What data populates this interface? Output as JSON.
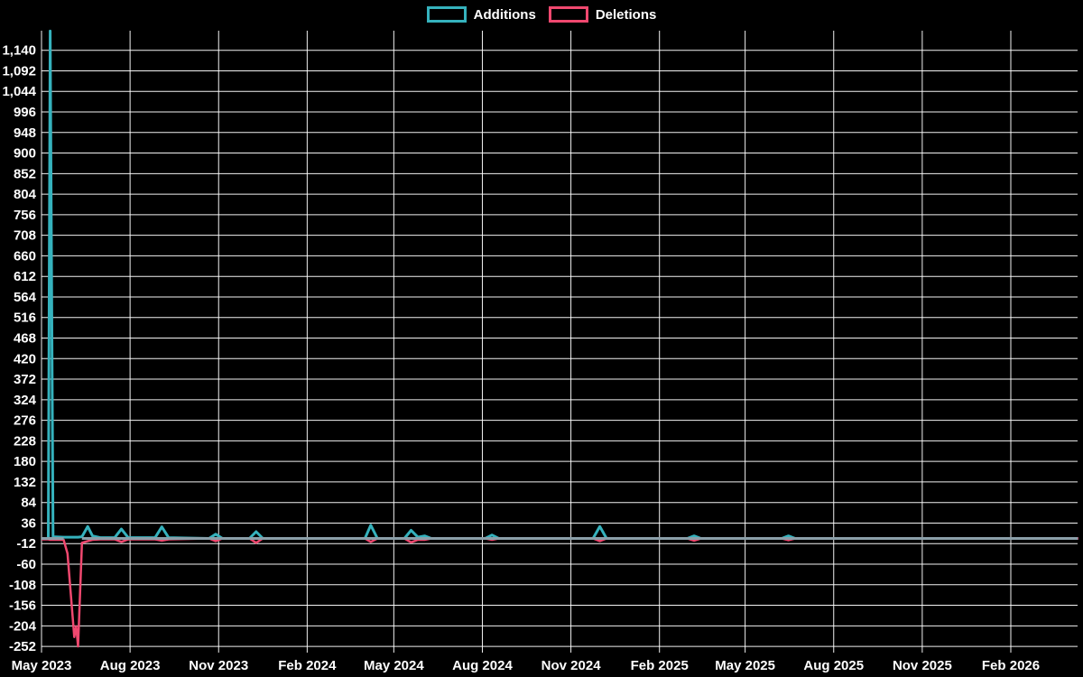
{
  "colors": {
    "background": "#000000",
    "grid": "#ffffff",
    "additions": "#35b2bd",
    "deletions": "#f0486f",
    "baseline": "#8b9fa9",
    "text": "#ffffff"
  },
  "chart_data": {
    "type": "line",
    "title": "",
    "xlabel": "",
    "ylabel": "",
    "legend_position": "top-center",
    "grid": true,
    "y_axis": {
      "tick_values": [
        1140,
        1092,
        1044,
        996,
        948,
        900,
        852,
        804,
        756,
        708,
        660,
        612,
        564,
        516,
        468,
        420,
        372,
        324,
        276,
        228,
        180,
        132,
        84,
        36,
        -12,
        -60,
        -108,
        -156,
        -204,
        -252
      ],
      "tick_labels": [
        "1,140",
        "1,092",
        "1,044",
        "996",
        "948",
        "900",
        "852",
        "804",
        "756",
        "708",
        "660",
        "612",
        "564",
        "516",
        "468",
        "420",
        "372",
        "324",
        "276",
        "228",
        "180",
        "132",
        "84",
        "36",
        "-12",
        "-60",
        "-108",
        "-156",
        "-204",
        "-252"
      ],
      "max_data_value": 1185,
      "min_data_value": -252
    },
    "x_ticks": [
      {
        "label": "May 2023",
        "date": "2023-05-01"
      },
      {
        "label": "Aug 2023",
        "date": "2023-08-01"
      },
      {
        "label": "Nov 2023",
        "date": "2023-11-01"
      },
      {
        "label": "Feb 2024",
        "date": "2024-02-01"
      },
      {
        "label": "May 2024",
        "date": "2024-05-01"
      },
      {
        "label": "Aug 2024",
        "date": "2024-08-01"
      },
      {
        "label": "Nov 2024",
        "date": "2024-11-01"
      },
      {
        "label": "Feb 2025",
        "date": "2025-02-01"
      },
      {
        "label": "May 2025",
        "date": "2025-05-01"
      },
      {
        "label": "Aug 2025",
        "date": "2025-08-01"
      },
      {
        "label": "Nov 2025",
        "date": "2025-11-01"
      },
      {
        "label": "Feb 2026",
        "date": "2026-02-01"
      }
    ],
    "series": [
      {
        "name": "Additions",
        "color": "#35b2bd",
        "key": "a"
      },
      {
        "name": "Deletions",
        "color": "#f0486f",
        "key": "d"
      }
    ],
    "points": [
      {
        "t": "2023-05-01",
        "a": 0,
        "d": -2
      },
      {
        "t": "2023-05-08",
        "a": 0,
        "d": -2
      },
      {
        "t": "2023-05-10",
        "a": 1185,
        "d": -3
      },
      {
        "t": "2023-05-13",
        "a": 4,
        "d": -3
      },
      {
        "t": "2023-05-24",
        "a": 3,
        "d": -3
      },
      {
        "t": "2023-05-28",
        "a": 3,
        "d": -35
      },
      {
        "t": "2023-06-04",
        "a": 3,
        "d": -230
      },
      {
        "t": "2023-06-06",
        "a": 3,
        "d": -205
      },
      {
        "t": "2023-06-08",
        "a": 3,
        "d": -252
      },
      {
        "t": "2023-06-12",
        "a": 4,
        "d": -10
      },
      {
        "t": "2023-06-18",
        "a": 28,
        "d": -6
      },
      {
        "t": "2023-06-23",
        "a": 6,
        "d": -3
      },
      {
        "t": "2023-07-01",
        "a": 2,
        "d": -2
      },
      {
        "t": "2023-07-16",
        "a": 2,
        "d": -2
      },
      {
        "t": "2023-07-23",
        "a": 22,
        "d": -8
      },
      {
        "t": "2023-07-30",
        "a": 2,
        "d": -2
      },
      {
        "t": "2023-08-27",
        "a": 2,
        "d": -2
      },
      {
        "t": "2023-09-03",
        "a": 27,
        "d": -5
      },
      {
        "t": "2023-09-10",
        "a": 2,
        "d": -2
      },
      {
        "t": "2023-10-22",
        "a": 0,
        "d": 0
      },
      {
        "t": "2023-10-29",
        "a": 10,
        "d": -6
      },
      {
        "t": "2023-11-05",
        "a": 0,
        "d": 0
      },
      {
        "t": "2023-12-03",
        "a": 0,
        "d": 0
      },
      {
        "t": "2023-12-10",
        "a": 16,
        "d": -10
      },
      {
        "t": "2023-12-17",
        "a": 0,
        "d": 0
      },
      {
        "t": "2024-04-01",
        "a": 0,
        "d": 0
      },
      {
        "t": "2024-04-07",
        "a": 31,
        "d": -8
      },
      {
        "t": "2024-04-14",
        "a": 0,
        "d": 0
      },
      {
        "t": "2024-05-12",
        "a": 0,
        "d": 0
      },
      {
        "t": "2024-05-19",
        "a": 19,
        "d": -9
      },
      {
        "t": "2024-05-26",
        "a": 3,
        "d": -3
      },
      {
        "t": "2024-06-02",
        "a": 6,
        "d": -3
      },
      {
        "t": "2024-06-09",
        "a": 0,
        "d": 0
      },
      {
        "t": "2024-08-04",
        "a": 0,
        "d": 0
      },
      {
        "t": "2024-08-11",
        "a": 8,
        "d": -3
      },
      {
        "t": "2024-08-18",
        "a": 0,
        "d": 0
      },
      {
        "t": "2024-11-24",
        "a": 0,
        "d": 0
      },
      {
        "t": "2024-12-01",
        "a": 28,
        "d": -6
      },
      {
        "t": "2024-12-08",
        "a": 0,
        "d": 0
      },
      {
        "t": "2025-03-02",
        "a": 0,
        "d": 0
      },
      {
        "t": "2025-03-09",
        "a": 6,
        "d": -5
      },
      {
        "t": "2025-03-16",
        "a": 0,
        "d": 0
      },
      {
        "t": "2025-06-08",
        "a": 0,
        "d": 0
      },
      {
        "t": "2025-06-15",
        "a": 6,
        "d": -4
      },
      {
        "t": "2025-06-22",
        "a": 0,
        "d": 0
      },
      {
        "t": "2026-04-12",
        "a": 0,
        "d": 0
      }
    ]
  }
}
